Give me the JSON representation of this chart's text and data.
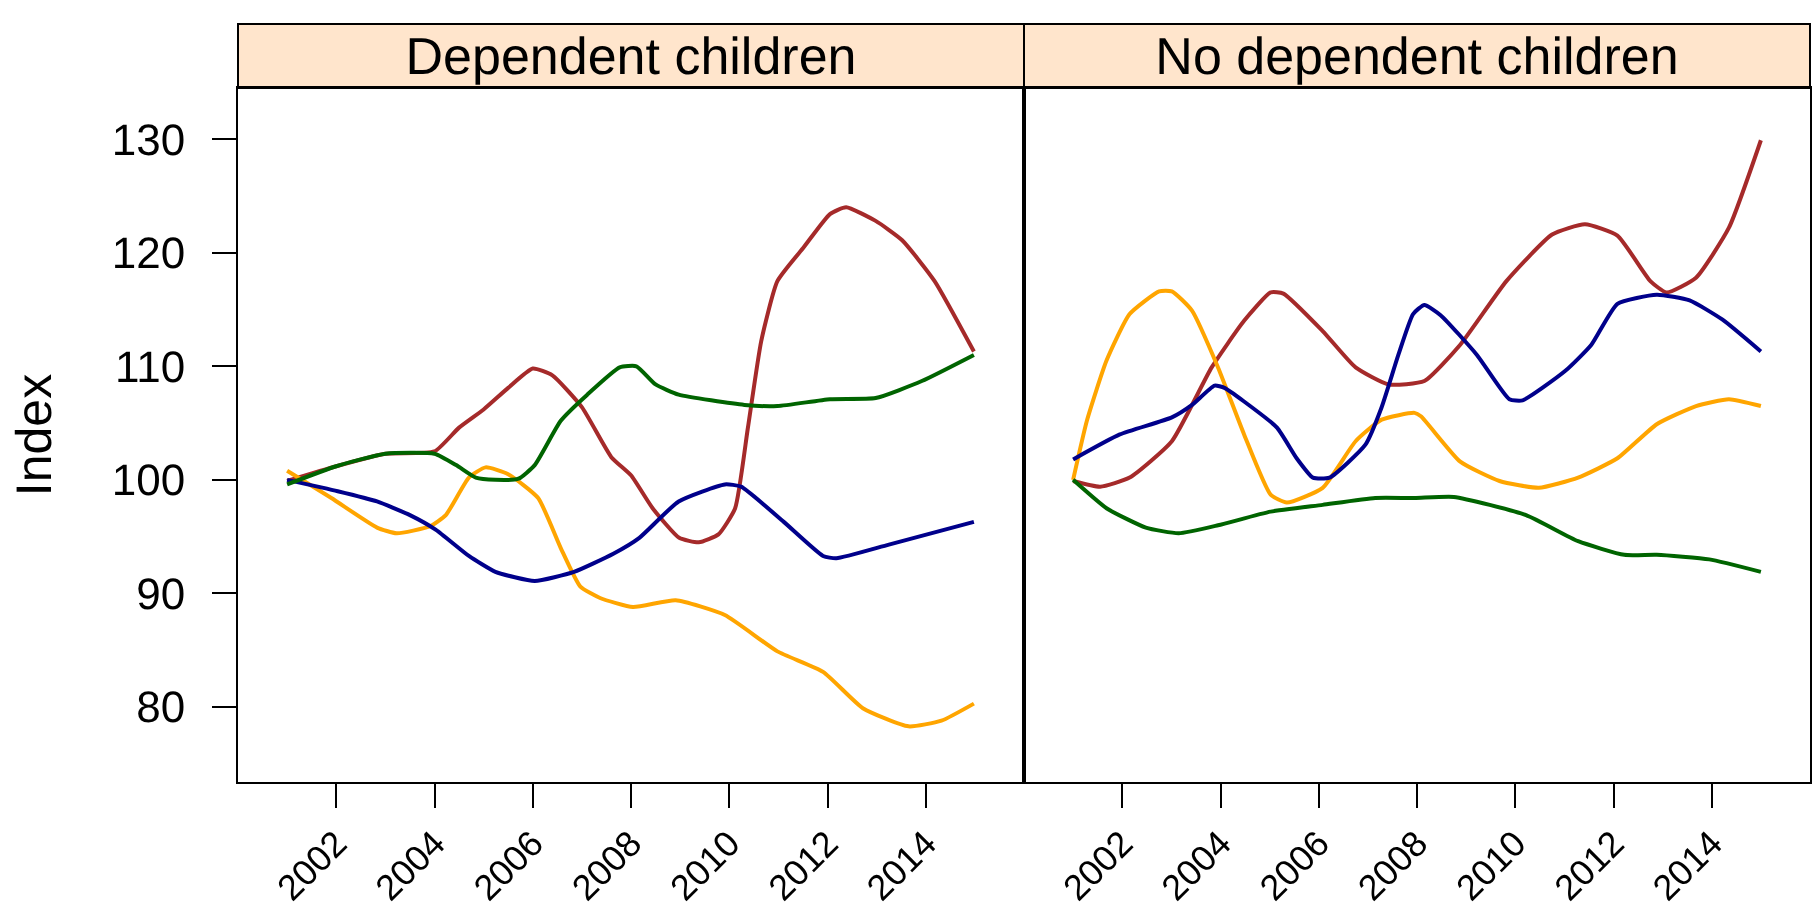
{
  "chart_data": [
    {
      "type": "line",
      "title": "Dependent children",
      "ylabel": "Index",
      "xlim": [
        2000,
        2016
      ],
      "xticks": [
        2002,
        2004,
        2006,
        2008,
        2010,
        2012,
        2014
      ],
      "ylim": [
        73.4,
        134.5
      ],
      "yticks": [
        80,
        90,
        100,
        110,
        120,
        130
      ],
      "series": [
        {
          "color": "#a52a2a",
          "x": [
            2001,
            2002,
            2003,
            2004,
            2004.5,
            2005,
            2005.5,
            2006,
            2006.4,
            2007,
            2007.6,
            2008,
            2008.44,
            2008.98,
            2009.38,
            2009.78,
            2010.12,
            2010.38,
            2010.65,
            2010.98,
            2011.52,
            2012.05,
            2012.38,
            2012.98,
            2013.52,
            2014.18,
            2014.98
          ],
          "values": [
            99.9,
            101.2,
            102.3,
            102.5,
            104.6,
            106.2,
            108.1,
            109.8,
            109.2,
            106.4,
            102,
            100.4,
            97.5,
            94.9,
            94.5,
            95.2,
            97.5,
            104.6,
            112.2,
            117.5,
            120.5,
            123.4,
            124.0,
            122.8,
            121.1,
            117.5,
            111.3
          ]
        },
        {
          "color": "#ffa500",
          "x": [
            2001,
            2001.9,
            2002.83,
            2003.23,
            2003.9,
            2004.23,
            2004.7,
            2005.04,
            2005.5,
            2006.11,
            2006.57,
            2006.97,
            2007.37,
            2008.04,
            2008.91,
            2009.91,
            2010.98,
            2011.91,
            2012.72,
            2013.65,
            2014.32,
            2014.98
          ],
          "values": [
            100.8,
            98.4,
            95.8,
            95.3,
            95.9,
            96.9,
            100.2,
            101.1,
            100.5,
            98.4,
            94.0,
            90.6,
            89.6,
            88.8,
            89.4,
            88.1,
            84.9,
            83.1,
            79.9,
            78.3,
            78.8,
            80.3
          ]
        },
        {
          "color": "#00008b",
          "x": [
            2001,
            2002.03,
            2002.83,
            2003.5,
            2004.03,
            2004.7,
            2005.24,
            2006.04,
            2006.84,
            2007.64,
            2008.17,
            2008.97,
            2009.91,
            2010.24,
            2011.11,
            2011.91,
            2012.18,
            2013.25,
            2014.98
          ],
          "values": [
            100.0,
            99.0,
            98.1,
            96.9,
            95.6,
            93.3,
            91.9,
            91.1,
            91.9,
            93.5,
            94.9,
            98.1,
            99.6,
            99.4,
            96.3,
            93.3,
            93.1,
            94.3,
            96.3
          ]
        },
        {
          "color": "#006400",
          "x": [
            2001,
            2002,
            2003,
            2004,
            2004.44,
            2004.84,
            2005.24,
            2005.71,
            2006.04,
            2006.57,
            2007.11,
            2007.77,
            2008.11,
            2008.5,
            2008.97,
            2010.31,
            2010.98,
            2012.05,
            2012.98,
            2013.92,
            2014.98
          ],
          "values": [
            99.6,
            101.2,
            102.3,
            102.3,
            101.3,
            100.2,
            100.0,
            100.1,
            101.3,
            105.2,
            107.5,
            109.9,
            110.0,
            108.4,
            107.5,
            106.6,
            106.5,
            107.1,
            107.2,
            108.7,
            111.0
          ]
        }
      ]
    },
    {
      "type": "line",
      "title": "No dependent children",
      "xlim": [
        2000,
        2016
      ],
      "xticks": [
        2002,
        2004,
        2006,
        2008,
        2010,
        2012,
        2014
      ],
      "ylim": [
        73.4,
        134.5
      ],
      "yticks": [
        80,
        90,
        100,
        110,
        120,
        130
      ],
      "tick_labels": "x",
      "series": [
        {
          "color": "#a52a2a",
          "x": [
            2001,
            2001.55,
            2002.15,
            2003.01,
            2003.82,
            2004.48,
            2005.02,
            2005.28,
            2006.08,
            2006.75,
            2007.42,
            2008.15,
            2008.88,
            2009.82,
            2010.75,
            2011.42,
            2012.08,
            2012.75,
            2013.08,
            2013.68,
            2014.35,
            2015
          ],
          "values": [
            99.9,
            99.4,
            100.2,
            103.4,
            109.9,
            114.0,
            116.5,
            116.4,
            113.1,
            109.9,
            108.4,
            108.7,
            111.9,
            117.5,
            121.6,
            122.5,
            121.5,
            117.5,
            116.5,
            117.8,
            122.2,
            129.9
          ]
        },
        {
          "color": "#ffa500",
          "x": [
            2001,
            2001.28,
            2001.68,
            2002.15,
            2002.75,
            2003.01,
            2003.42,
            2003.95,
            2004.48,
            2005.02,
            2005.35,
            2006.08,
            2006.75,
            2007.28,
            2007.95,
            2008.08,
            2008.88,
            2009.68,
            2010.48,
            2011.28,
            2012.08,
            2012.88,
            2013.68,
            2014.35,
            2015
          ],
          "values": [
            100.0,
            105.2,
            110.5,
            114.6,
            116.6,
            116.6,
            114.9,
            109.9,
            104.0,
            98.7,
            98.0,
            99.3,
            103.4,
            105.3,
            105.9,
            105.6,
            101.6,
            99.9,
            99.3,
            100.2,
            101.9,
            104.9,
            106.5,
            107.1,
            106.5
          ]
        },
        {
          "color": "#00008b",
          "x": [
            2001,
            2001.95,
            2003.01,
            2003.42,
            2003.88,
            2004.08,
            2004.48,
            2005.15,
            2005.55,
            2005.88,
            2006.22,
            2006.95,
            2007.28,
            2007.62,
            2007.92,
            2008.15,
            2008.48,
            2009.22,
            2009.88,
            2010.15,
            2011.02,
            2011.55,
            2012.08,
            2012.88,
            2013.55,
            2014.22,
            2015
          ],
          "values": [
            101.8,
            104.0,
            105.5,
            106.6,
            108.3,
            108.1,
            106.9,
            104.6,
            101.9,
            100.2,
            100.2,
            103.1,
            106.4,
            111.0,
            114.6,
            115.4,
            114.5,
            111.0,
            107.1,
            107.0,
            109.6,
            111.9,
            115.5,
            116.3,
            115.8,
            114.1,
            111.3
          ]
        },
        {
          "color": "#006400",
          "x": [
            2001,
            2001.68,
            2002.48,
            2003.15,
            2003.95,
            2005.02,
            2006.08,
            2007.15,
            2007.95,
            2008.75,
            2010.22,
            2011.28,
            2012.22,
            2012.88,
            2013.95,
            2015
          ],
          "values": [
            100.0,
            97.5,
            95.8,
            95.3,
            96.0,
            97.2,
            97.8,
            98.4,
            98.4,
            98.5,
            96.9,
            94.6,
            93.4,
            93.4,
            93.0,
            91.9
          ]
        }
      ]
    }
  ]
}
